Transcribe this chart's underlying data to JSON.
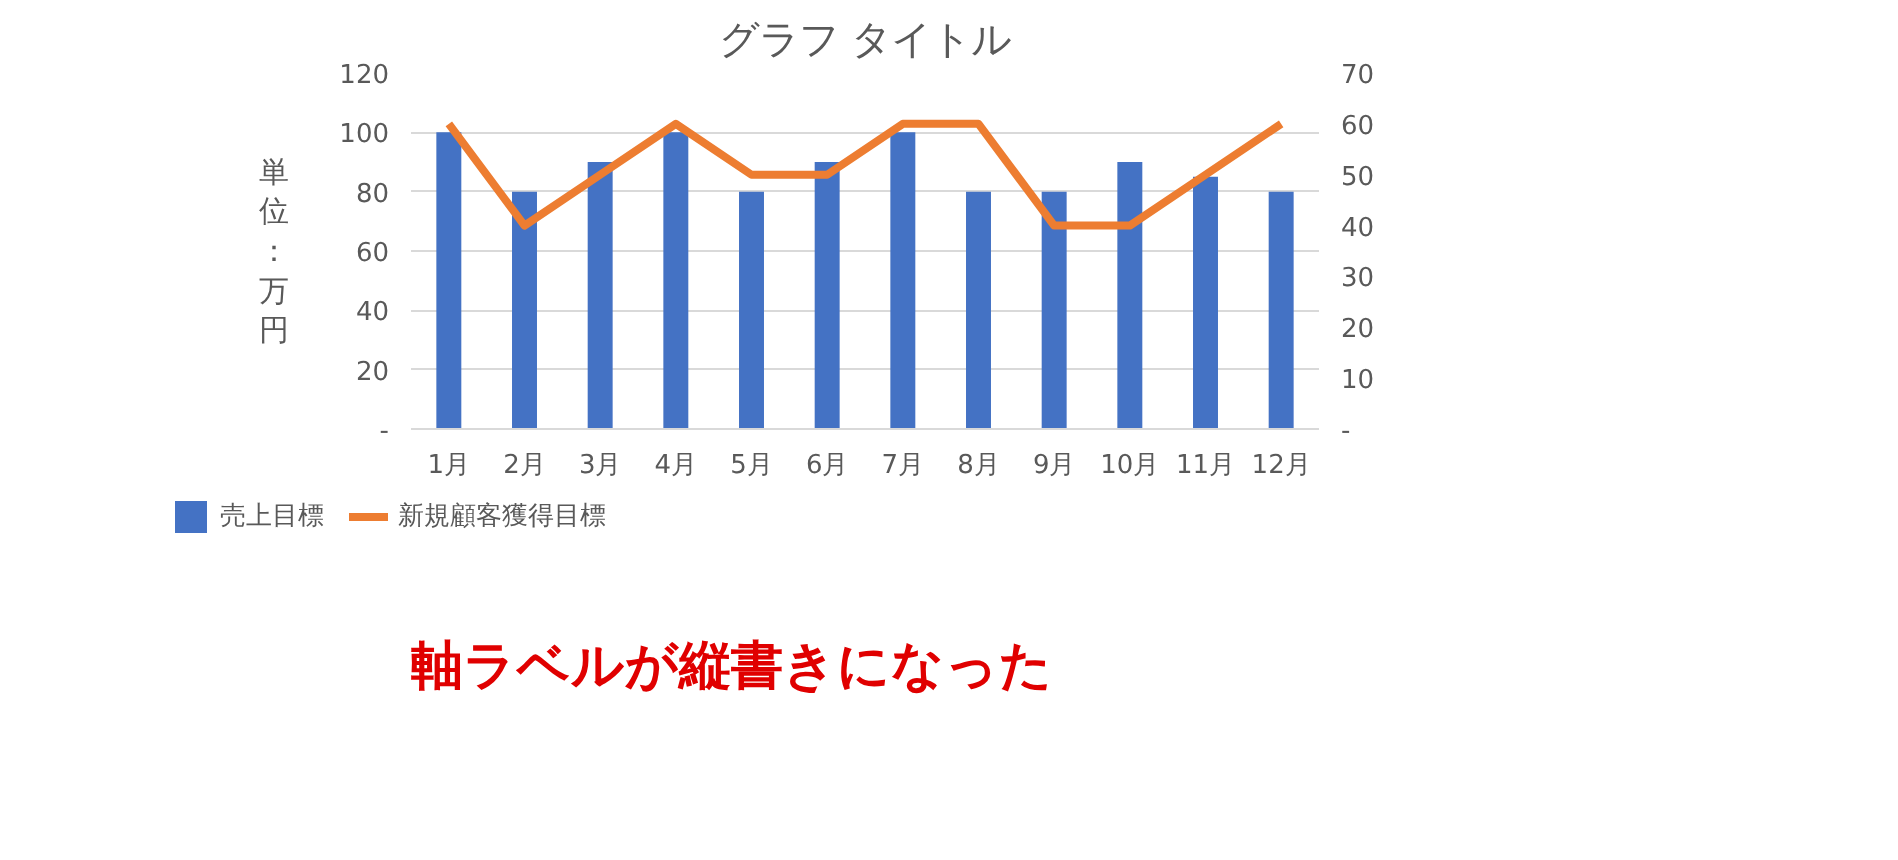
{
  "chart_data": {
    "type": "bar",
    "title": "グラフ タイトル",
    "ylabel": "単位：万円",
    "categories": [
      "1月",
      "2月",
      "3月",
      "4月",
      "5月",
      "6月",
      "7月",
      "8月",
      "9月",
      "10月",
      "11月",
      "12月"
    ],
    "series": [
      {
        "name": "売上目標",
        "color": "#4472c4",
        "values": [
          100,
          80,
          90,
          100,
          80,
          90,
          100,
          80,
          80,
          90,
          85,
          80
        ]
      },
      {
        "name": "新規顧客獲得目標",
        "type": "line",
        "axis": "y2",
        "color": "#ed7d31",
        "values": [
          60,
          40,
          50,
          60,
          50,
          50,
          60,
          60,
          40,
          40,
          50,
          60
        ]
      }
    ],
    "ylim": [
      0,
      120
    ],
    "yticks": [
      {
        "value": 0,
        "label": "-"
      },
      20,
      40,
      60,
      80,
      100,
      120
    ],
    "y2lim": [
      0,
      70
    ],
    "y2ticks": [
      {
        "value": 0,
        "label": "-"
      },
      10,
      20,
      30,
      40,
      50,
      60,
      70
    ],
    "grid": "y",
    "legend": "bottom",
    "annotations": [
      "軸ラベルが縦書きになった"
    ]
  }
}
